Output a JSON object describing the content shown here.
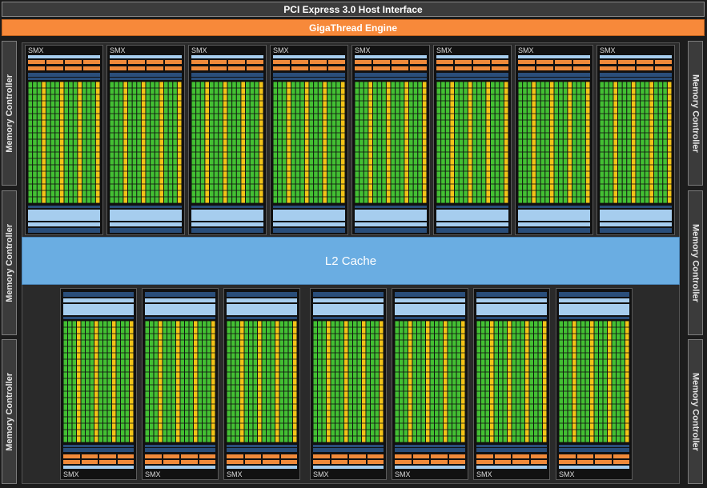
{
  "header": {
    "pcie": "PCI Express 3.0 Host Interface",
    "gigathread": "GigaThread Engine"
  },
  "memory_controller_label": "Memory Controller",
  "l2_cache": "L2 Cache",
  "smx_label": "SMX",
  "top_smx_count": 8,
  "bottom_smx_count": 7,
  "colors": {
    "core": "#43c033",
    "special": "#f2c418",
    "cache": "#a6cdee",
    "scheduler": "#f08a3a",
    "register": "#2a4e7a"
  }
}
